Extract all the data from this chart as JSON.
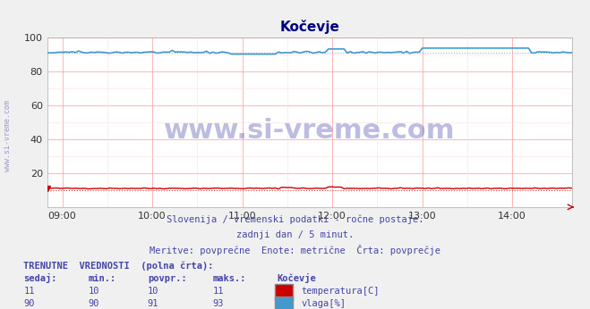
{
  "title": "Kočevje",
  "title_color": "#000080",
  "bg_color": "#f0f0f0",
  "plot_bg_color": "#ffffff",
  "grid_color_major": "#ff9999",
  "grid_color_minor": "#ffdddd",
  "xlabel": "",
  "ylabel": "",
  "xlim_hours": [
    8.833,
    14.667
  ],
  "ylim": [
    0,
    100
  ],
  "yticks": [
    20,
    40,
    60,
    80,
    100
  ],
  "xtick_labels": [
    "09:00",
    "10:00",
    "11:00",
    "12:00",
    "13:00",
    "14:00"
  ],
  "xtick_positions": [
    9.0,
    10.0,
    11.0,
    12.0,
    13.0,
    14.0
  ],
  "temp_color": "#cc0000",
  "temp_avg_color": "#ff6666",
  "humidity_color": "#4499cc",
  "humidity_avg_color": "#88ccee",
  "watermark_text": "www.si-vreme.com",
  "watermark_color": "#4444aa",
  "watermark_alpha": 0.35,
  "side_text": "www.si-vreme.com",
  "subtitle1": "Slovenija / vremenski podatki - ročne postaje.",
  "subtitle2": "zadnji dan / 5 minut.",
  "subtitle3": "Meritve: povprečne  Enote: metrične  Črta: povprečje",
  "subtitle_color": "#4444aa",
  "table_header": "TRENUTNE  VREDNOSTI  (polna črta):",
  "table_cols": [
    "sedaj:",
    "min.:",
    "povpr.:",
    "maks.:",
    "Kočevje"
  ],
  "temp_row": [
    11,
    10,
    10,
    11
  ],
  "humidity_row": [
    90,
    90,
    91,
    93
  ],
  "temp_label": "temperatura[C]",
  "humidity_label": "vlaga[%]",
  "temp_dot_color": "#cc0000",
  "humidity_dot_color": "#4499cc",
  "arrow_color": "#cc0000",
  "n_points": 169,
  "temp_base": 11.0,
  "temp_variation": 0.3,
  "humidity_base": 91.0,
  "humidity_variation": 2.5
}
